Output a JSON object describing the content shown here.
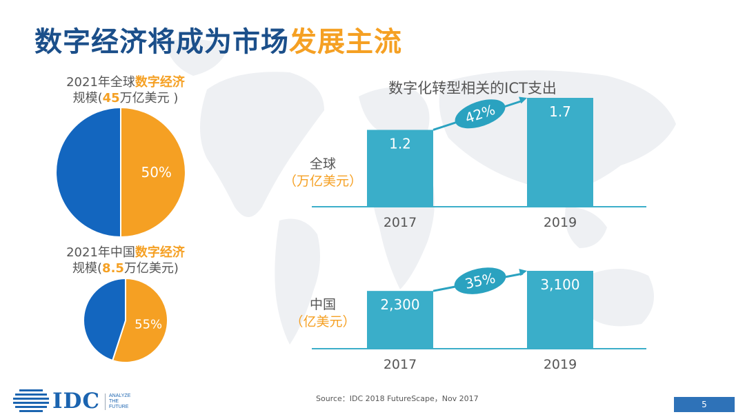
{
  "title": {
    "main": "数字经济将成为市场",
    "highlight": "发展主流"
  },
  "pies": [
    {
      "line1_pre": "2021年全球",
      "line1_hl": "数字经济",
      "line2_pre": "规模(",
      "line2_hl": "45",
      "line2_post": "万亿美元 )",
      "percent_label": "50%"
    },
    {
      "line1_pre": "2021年中国",
      "line1_hl": "数字经济",
      "line2_pre": "规模(",
      "line2_hl": "8.5",
      "line2_post": "万亿美元)",
      "percent_label": "55%"
    }
  ],
  "bar_section_title": "数字化转型相关的ICT支出",
  "bar_charts": [
    {
      "region": "全球",
      "unit_open": "（",
      "unit": "万亿美元",
      "unit_close": "）",
      "growth": "42%"
    },
    {
      "region": "中国",
      "unit_open": "（",
      "unit": "亿美元",
      "unit_close": "）",
      "growth": "35%"
    }
  ],
  "chart_data": [
    {
      "type": "pie",
      "title": "2021年全球数字经济规模(45万亿美元 )",
      "slices": [
        {
          "value": 50,
          "color": "#f5a023",
          "label": "50%"
        },
        {
          "value": 50,
          "color": "#1366bf",
          "label": ""
        }
      ]
    },
    {
      "type": "pie",
      "title": "2021年中国数字经济规模(8.5万亿美元)",
      "slices": [
        {
          "value": 55,
          "color": "#f5a023",
          "label": "55%"
        },
        {
          "value": 45,
          "color": "#1366bf",
          "label": ""
        }
      ]
    },
    {
      "type": "bar",
      "title": "数字化转型相关的ICT支出",
      "categories": [
        "2017",
        "2019"
      ],
      "values": [
        1.2,
        1.7
      ],
      "value_labels": [
        "1.2",
        "1.7"
      ],
      "ylabel": "全球（万亿美元）",
      "growth_annotation": "42%",
      "ylim": [
        0,
        1.7
      ]
    },
    {
      "type": "bar",
      "categories": [
        "2017",
        "2019"
      ],
      "values": [
        2300,
        3100
      ],
      "value_labels": [
        "2,300",
        "3,100"
      ],
      "ylabel": "中国（亿美元）",
      "growth_annotation": "35%",
      "ylim": [
        0,
        3100
      ]
    }
  ],
  "colors": {
    "title": "#1b4f8a",
    "accent": "#f5a023",
    "pie_blue": "#1366bf",
    "bar": "#3aaec9",
    "axis": "#3aaec9",
    "growth_ellipse": "#2aa2c0"
  },
  "source": "Source：IDC 2018 FutureScape，Nov 2017",
  "logo": {
    "name": "IDC",
    "tagline": [
      "ANALYZE",
      "THE",
      "FUTURE"
    ]
  },
  "page_number": "5"
}
